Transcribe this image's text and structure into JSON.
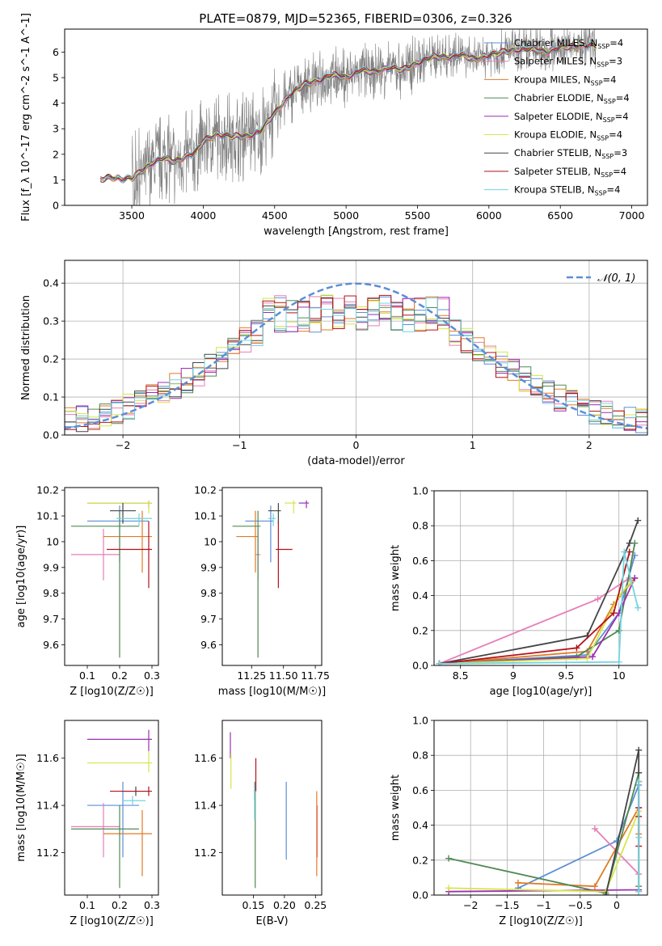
{
  "figure_title": "PLATE=0879, MJD=52365, FIBERID=0306, z=0.326",
  "colors": {
    "Chabrier MILES": "#5b8fd6",
    "Salpeter MILES": "#e77eb8",
    "Kroupa MILES": "#e07b24",
    "Chabrier ELODIE": "#4f8a55",
    "Salpeter ELODIE": "#9b2fb0",
    "Kroupa ELODIE": "#d6e54a",
    "Chabrier STELIB": "#444444",
    "Salpeter STELIB": "#b3121b",
    "Kroupa STELIB": "#72d4e0",
    "observed": "#808080",
    "gaussian": "#5b8fd6"
  },
  "chart_data": [
    {
      "id": "spectrum",
      "type": "line",
      "title": "PLATE=0879, MJD=52365, FIBERID=0306, z=0.326",
      "xlabel": "wavelength [Angstrom, rest frame]",
      "ylabel": "Flux [f_λ 10^-17 erg cm^-2 s^-1 A^-1]",
      "xlim": [
        3030,
        7110
      ],
      "ylim": [
        0,
        6.9
      ],
      "xticks": [
        3500,
        4000,
        4500,
        5000,
        5500,
        6000,
        6500,
        7000
      ],
      "yticks": [
        0,
        1,
        2,
        3,
        4,
        5,
        6
      ],
      "legend_placement": "upper right",
      "legend": [
        {
          "label": "Chabrier MILES, N_SSP=4"
        },
        {
          "label": "Salpeter MILES, N_SSP=3"
        },
        {
          "label": "Kroupa MILES, N_SSP=4"
        },
        {
          "label": "Chabrier ELODIE, N_SSP=4"
        },
        {
          "label": "Salpeter ELODIE, N_SSP=4"
        },
        {
          "label": "Kroupa ELODIE, N_SSP=4"
        },
        {
          "label": "Chabrier STELIB, N_SSP=3"
        },
        {
          "label": "Salpeter STELIB, N_SSP=4"
        },
        {
          "label": "Kroupa STELIB, N_SSP=4"
        }
      ],
      "model_continuum": {
        "x": [
          3280,
          3350,
          3420,
          3500,
          3560,
          3650,
          3720,
          3800,
          3870,
          3950,
          4000,
          4100,
          4200,
          4300,
          4400,
          4500,
          4600,
          4700,
          4800,
          4900,
          5000,
          5100,
          5200,
          5300,
          5400,
          5500,
          5600,
          5700,
          5800,
          5900,
          6000,
          6100,
          6200,
          6300,
          6400,
          6500,
          6600,
          6700,
          6750
        ],
        "y": [
          1.0,
          1.1,
          1.05,
          1.05,
          1.3,
          1.7,
          1.85,
          1.7,
          1.9,
          2.1,
          2.5,
          2.8,
          2.7,
          2.7,
          2.9,
          3.6,
          4.3,
          4.7,
          4.9,
          5.1,
          5.0,
          5.3,
          5.2,
          5.4,
          5.3,
          5.6,
          5.8,
          5.8,
          5.9,
          5.7,
          5.9,
          6.0,
          6.1,
          6.1,
          6.0,
          6.2,
          6.2,
          6.3,
          6.2
        ]
      },
      "observed_noise_amplitude_by_region": [
        {
          "from": 3280,
          "to": 3500,
          "amp": 0.05
        },
        {
          "from": 3500,
          "to": 4500,
          "amp": 1.8
        },
        {
          "from": 4500,
          "to": 5500,
          "amp": 1.2
        },
        {
          "from": 5500,
          "to": 6800,
          "amp": 0.9
        }
      ]
    },
    {
      "id": "residuals",
      "type": "step-histogram",
      "xlabel": "(data-model)/error",
      "ylabel": "Normed distribution",
      "xlim": [
        -2.5,
        2.5
      ],
      "ylim": [
        0,
        0.46
      ],
      "xticks": [
        -2,
        -1,
        0,
        1,
        2
      ],
      "yticks": [
        0.0,
        0.1,
        0.2,
        0.3,
        0.4
      ],
      "grid": true,
      "legend_placement": "upper right",
      "gaussian_label": "N(0, 1)",
      "bin_width": 0.1,
      "bin_start": -2.5
    },
    {
      "id": "age-vs-Z",
      "type": "errorbar",
      "xlabel": "Z [log10(Z/Z☉)]",
      "ylabel": "age [log10(age/yr)]",
      "xlim": [
        0.03,
        0.32
      ],
      "ylim": [
        9.52,
        10.21
      ],
      "xticks": [
        0.1,
        0.2,
        0.3
      ],
      "yticks": [
        9.6,
        9.7,
        9.8,
        9.9,
        10.0,
        10.1,
        10.2
      ],
      "points": [
        {
          "model": "Chabrier MILES",
          "x": 0.2,
          "xerr": [
            0.1,
            0.09
          ],
          "y": 10.08,
          "yerr": [
            0.16,
            0.06
          ]
        },
        {
          "model": "Salpeter MILES",
          "x": 0.15,
          "xerr": [
            0.1,
            0.05
          ],
          "y": 9.95,
          "yerr": [
            0.1,
            0.1
          ]
        },
        {
          "model": "Kroupa MILES",
          "x": 0.27,
          "xerr": [
            0.12,
            0.03
          ],
          "y": 10.02,
          "yerr": [
            0.14,
            0.1
          ]
        },
        {
          "model": "Chabrier ELODIE",
          "x": 0.2,
          "xerr": [
            0.15,
            0.06
          ],
          "y": 10.06,
          "yerr": [
            0.51,
            0.06
          ]
        },
        {
          "model": "Salpeter ELODIE",
          "x": 0.29,
          "xerr": [
            0.19,
            0.01
          ],
          "y": 10.15,
          "yerr": [
            0.02,
            0.01
          ]
        },
        {
          "model": "Kroupa ELODIE",
          "x": 0.29,
          "xerr": [
            0.19,
            0.01
          ],
          "y": 10.15,
          "yerr": [
            0.04,
            0.01
          ]
        },
        {
          "model": "Chabrier STELIB",
          "x": 0.21,
          "xerr": [
            0.04,
            0.04
          ],
          "y": 10.12,
          "yerr": [
            0.05,
            0.03
          ]
        },
        {
          "model": "Salpeter STELIB",
          "x": 0.29,
          "xerr": [
            0.13,
            0.01
          ],
          "y": 9.97,
          "yerr": [
            0.15,
            0.11
          ]
        },
        {
          "model": "Kroupa STELIB",
          "x": 0.26,
          "xerr": [
            0.07,
            0.04
          ],
          "y": 10.09,
          "yerr": [
            0.03,
            0.02
          ]
        }
      ]
    },
    {
      "id": "age-vs-mass",
      "type": "errorbar",
      "xlabel": "mass [log10(M/M☉)]",
      "ylabel": "",
      "xlim": [
        11.02,
        11.8
      ],
      "ylim": [
        9.52,
        10.21
      ],
      "xticks": [
        11.25,
        11.5,
        11.75
      ],
      "xticklabels": [
        "11.25",
        "11.50",
        "11.75"
      ],
      "yticks": [
        9.6,
        9.7,
        9.8,
        9.9,
        10.0,
        10.1,
        10.2
      ],
      "points": [
        {
          "model": "Chabrier MILES",
          "x": 11.4,
          "xerr": [
            0.2,
            0.02
          ],
          "y": 10.08,
          "yerr": [
            0.16,
            0.06
          ]
        },
        {
          "model": "Salpeter MILES",
          "x": 11.3,
          "xerr": [
            0.02,
            0.02
          ],
          "y": 9.95,
          "yerr": [
            0.1,
            0.1
          ]
        },
        {
          "model": "Kroupa MILES",
          "x": 11.28,
          "xerr": [
            0.15,
            0.02
          ],
          "y": 10.02,
          "yerr": [
            0.14,
            0.1
          ]
        },
        {
          "model": "Chabrier ELODIE",
          "x": 11.3,
          "xerr": [
            0.2,
            0.02
          ],
          "y": 10.06,
          "yerr": [
            0.51,
            0.06
          ]
        },
        {
          "model": "Salpeter ELODIE",
          "x": 11.68,
          "xerr": [
            0.06,
            0.02
          ],
          "y": 10.15,
          "yerr": [
            0.02,
            0.01
          ]
        },
        {
          "model": "Kroupa ELODIE",
          "x": 11.58,
          "xerr": [
            0.07,
            0.02
          ],
          "y": 10.15,
          "yerr": [
            0.04,
            0.01
          ]
        },
        {
          "model": "Chabrier STELIB",
          "x": 11.46,
          "xerr": [
            0.08,
            0.02
          ],
          "y": 10.12,
          "yerr": [
            0.05,
            0.03
          ]
        },
        {
          "model": "Salpeter STELIB",
          "x": 11.46,
          "xerr": [
            0.02,
            0.11
          ],
          "y": 9.97,
          "yerr": [
            0.15,
            0.11
          ]
        },
        {
          "model": "Kroupa STELIB",
          "x": 11.42,
          "xerr": [
            0.04,
            0.02
          ],
          "y": 10.09,
          "yerr": [
            0.03,
            0.02
          ]
        }
      ]
    },
    {
      "id": "weight-vs-age",
      "type": "line",
      "xlabel": "age [log10(age/yr)]",
      "ylabel": "mass weight",
      "xlim": [
        8.25,
        10.27
      ],
      "ylim": [
        0,
        1.0
      ],
      "xticks": [
        8.5,
        9.0,
        9.5,
        10.0
      ],
      "yticks": [
        0.0,
        0.2,
        0.4,
        0.6,
        0.8,
        1.0
      ],
      "grid": true,
      "series": [
        {
          "model": "Chabrier MILES",
          "x": [
            8.3,
            9.7,
            10.0,
            10.15
          ],
          "y": [
            0.01,
            0.06,
            0.3,
            0.63
          ]
        },
        {
          "model": "Salpeter MILES",
          "x": [
            8.3,
            9.8,
            10.1
          ],
          "y": [
            0.01,
            0.38,
            0.5
          ]
        },
        {
          "model": "Kroupa MILES",
          "x": [
            8.3,
            9.7,
            9.95,
            10.15
          ],
          "y": [
            0.01,
            0.08,
            0.35,
            0.5
          ]
        },
        {
          "model": "Chabrier ELODIE",
          "x": [
            8.3,
            9.6,
            10.0,
            10.15
          ],
          "y": [
            0.01,
            0.05,
            0.2,
            0.7
          ]
        },
        {
          "model": "Salpeter ELODIE",
          "x": [
            8.3,
            9.75,
            10.0,
            10.15
          ],
          "y": [
            0.01,
            0.05,
            0.3,
            0.5
          ]
        },
        {
          "model": "Kroupa ELODIE",
          "x": [
            8.3,
            9.7,
            10.0,
            10.12
          ],
          "y": [
            0.01,
            0.04,
            0.4,
            0.48
          ]
        },
        {
          "model": "Chabrier STELIB",
          "x": [
            8.3,
            9.7,
            10.1,
            10.18
          ],
          "y": [
            0.01,
            0.17,
            0.7,
            0.83
          ]
        },
        {
          "model": "Salpeter STELIB",
          "x": [
            8.3,
            9.6,
            9.95,
            10.1
          ],
          "y": [
            0.01,
            0.1,
            0.3,
            0.65
          ]
        },
        {
          "model": "Kroupa STELIB",
          "x": [
            8.3,
            10.0,
            10.05,
            10.18
          ],
          "y": [
            0.01,
            0.02,
            0.65,
            0.33
          ]
        }
      ]
    },
    {
      "id": "mass-vs-Z",
      "type": "errorbar",
      "xlabel": "Z [log10(Z/Z☉)]",
      "ylabel": "mass [log10(M/M☉)]",
      "xlim": [
        0.03,
        0.32
      ],
      "ylim": [
        11.02,
        11.76
      ],
      "xticks": [
        0.1,
        0.2,
        0.3
      ],
      "yticks": [
        11.2,
        11.4,
        11.6
      ],
      "points": [
        {
          "model": "Chabrier MILES",
          "x": 0.21,
          "xerr": [
            0.11,
            0.05
          ],
          "y": 11.4,
          "yerr": [
            0.22,
            0.1
          ]
        },
        {
          "model": "Salpeter MILES",
          "x": 0.15,
          "xerr": [
            0.1,
            0.05
          ],
          "y": 11.31,
          "yerr": [
            0.13,
            0.1
          ]
        },
        {
          "model": "Kroupa MILES",
          "x": 0.27,
          "xerr": [
            0.12,
            0.03
          ],
          "y": 11.28,
          "yerr": [
            0.18,
            0.1
          ]
        },
        {
          "model": "Chabrier ELODIE",
          "x": 0.2,
          "xerr": [
            0.15,
            0.06
          ],
          "y": 11.3,
          "yerr": [
            0.25,
            0.1
          ]
        },
        {
          "model": "Salpeter ELODIE",
          "x": 0.29,
          "xerr": [
            0.19,
            0.01
          ],
          "y": 11.68,
          "yerr": [
            0.05,
            0.04
          ]
        },
        {
          "model": "Kroupa ELODIE",
          "x": 0.29,
          "xerr": [
            0.19,
            0.01
          ],
          "y": 11.58,
          "yerr": [
            0.04,
            0.05
          ]
        },
        {
          "model": "Chabrier STELIB",
          "x": 0.25,
          "xerr": [
            0.04,
            0.04
          ],
          "y": 11.46,
          "yerr": [
            0.02,
            0.02
          ]
        },
        {
          "model": "Salpeter STELIB",
          "x": 0.29,
          "xerr": [
            0.12,
            0.01
          ],
          "y": 11.46,
          "yerr": [
            0.02,
            0.02
          ]
        },
        {
          "model": "Kroupa STELIB",
          "x": 0.24,
          "xerr": [
            0.03,
            0.04
          ],
          "y": 11.42,
          "yerr": [
            0.02,
            0.02
          ]
        }
      ]
    },
    {
      "id": "mass-vs-ebv",
      "type": "errorbar",
      "xlabel": "E(B-V)",
      "ylabel": "",
      "xlim": [
        0.1,
        0.26
      ],
      "ylim": [
        11.02,
        11.76
      ],
      "xticks": [
        0.15,
        0.2,
        0.25
      ],
      "xticklabels": [
        "0.15",
        "0.20",
        "0.25"
      ],
      "yticks": [
        11.2,
        11.4,
        11.6
      ],
      "points": [
        {
          "model": "Chabrier MILES",
          "x": 0.203,
          "y": 11.34,
          "yerr": [
            0.17,
            0.16
          ]
        },
        {
          "model": "Salpeter MILES",
          "x": 0.253,
          "y": 11.3,
          "yerr": [
            0.12,
            0.1
          ]
        },
        {
          "model": "Kroupa MILES",
          "x": 0.252,
          "y": 11.28,
          "yerr": [
            0.18,
            0.18
          ]
        },
        {
          "model": "Chabrier ELODIE",
          "x": 0.153,
          "y": 11.3,
          "yerr": [
            0.25,
            0.2
          ]
        },
        {
          "model": "Salpeter ELODIE",
          "x": 0.113,
          "y": 11.65,
          "yerr": [
            0.05,
            0.06
          ]
        },
        {
          "model": "Kroupa ELODIE",
          "x": 0.114,
          "y": 11.55,
          "yerr": [
            0.08,
            0.07
          ]
        },
        {
          "model": "Chabrier STELIB",
          "x": 0.152,
          "y": 11.46,
          "yerr": [
            0.04,
            0.04
          ]
        },
        {
          "model": "Salpeter STELIB",
          "x": 0.154,
          "y": 11.5,
          "yerr": [
            0.04,
            0.1
          ]
        },
        {
          "model": "Kroupa STELIB",
          "x": 0.152,
          "y": 11.42,
          "yerr": [
            0.08,
            0.08
          ]
        }
      ]
    },
    {
      "id": "weight-vs-Z",
      "type": "line",
      "xlabel": "Z [log10(Z/Z☉)]",
      "ylabel": "mass weight",
      "xlim": [
        -2.5,
        0.42
      ],
      "ylim": [
        0,
        1.0
      ],
      "xticks": [
        -2.0,
        -1.5,
        -1.0,
        -0.5,
        0.0
      ],
      "yticks": [
        0.0,
        0.2,
        0.4,
        0.6,
        0.8,
        1.0
      ],
      "grid": true,
      "series": [
        {
          "model": "Chabrier MILES",
          "x": [
            -1.35,
            0.0,
            0.3,
            0.3
          ],
          "y": [
            0.04,
            0.31,
            0.63,
            0.02
          ]
        },
        {
          "model": "Salpeter MILES",
          "x": [
            -0.3,
            0.3,
            0.3
          ],
          "y": [
            0.38,
            0.12,
            0.5
          ]
        },
        {
          "model": "Kroupa MILES",
          "x": [
            -1.35,
            -0.3,
            0.3,
            0.3
          ],
          "y": [
            0.07,
            0.05,
            0.5,
            0.35
          ]
        },
        {
          "model": "Chabrier ELODIE",
          "x": [
            -2.3,
            -0.15,
            0.3,
            0.3
          ],
          "y": [
            0.21,
            0.01,
            0.7,
            0.05
          ]
        },
        {
          "model": "Salpeter ELODIE",
          "x": [
            -2.3,
            0.3,
            0.3
          ],
          "y": [
            0.02,
            0.03,
            0.5
          ]
        },
        {
          "model": "Kroupa ELODIE",
          "x": [
            -2.3,
            -0.15,
            0.3,
            0.3
          ],
          "y": [
            0.04,
            0.02,
            0.48,
            0.02
          ]
        },
        {
          "model": "Chabrier STELIB",
          "x": [
            -0.15,
            0.3,
            0.3
          ],
          "y": [
            0.0,
            0.83,
            0.7
          ]
        },
        {
          "model": "Salpeter STELIB",
          "x": [
            0.3,
            0.3,
            0.3
          ],
          "y": [
            0.28,
            0.45,
            0.65
          ]
        },
        {
          "model": "Kroupa STELIB",
          "x": [
            0.3,
            0.3,
            0.3
          ],
          "y": [
            0.02,
            0.33,
            0.65
          ]
        }
      ]
    }
  ]
}
